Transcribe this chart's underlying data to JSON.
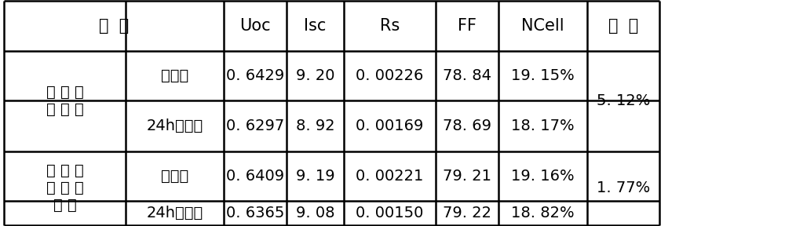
{
  "row1_left1": "常 规 烧\n结 工 艺",
  "row1_left2": "衰减前",
  "row1_data": [
    "0. 6429",
    "9. 20",
    "0. 00226",
    "78. 84",
    "19. 15%"
  ],
  "row1_decay": "5. 12%",
  "row2_left2": "24h光衰后",
  "row2_data": [
    "0. 6297",
    "8. 92",
    "0. 00169",
    "78. 69",
    "18. 17%"
  ],
  "row3_left1": "改 进 后\n的 烧 结\n工 艺",
  "row3_left2": "衰减前",
  "row3_data": [
    "0. 6409",
    "9. 19",
    "0. 00221",
    "79. 21",
    "19. 16%"
  ],
  "row3_decay": "1. 77%",
  "row4_left2": "24h光衰后",
  "row4_data": [
    "0. 6365",
    "9. 08",
    "0. 00150",
    "79. 22",
    "18. 82%"
  ],
  "bg_color": "#ffffff",
  "border_color": "#000000",
  "font_size": 14,
  "header_font_size": 15
}
